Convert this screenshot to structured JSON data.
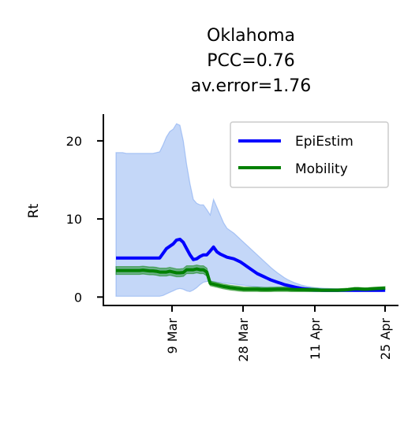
{
  "chart_data": {
    "type": "line",
    "title": [
      "Oklahoma",
      "PCC=0.76",
      "av.error=1.76"
    ],
    "xlabel": "",
    "ylabel": "Rt",
    "x_ticks": [
      "9 Mar",
      "28 Mar",
      "11 Apr",
      "25 Apr"
    ],
    "y_ticks": [
      0,
      10,
      20
    ],
    "ylim": [
      -1,
      23.5
    ],
    "legend": {
      "placement": "top-right"
    },
    "x": [
      0,
      1,
      2,
      3,
      4,
      5,
      6,
      7,
      8,
      9,
      10,
      11,
      12,
      13,
      14,
      15,
      16,
      17,
      18,
      19,
      20,
      21,
      22,
      23,
      24,
      25,
      26,
      27,
      28,
      29,
      30,
      31,
      32,
      33,
      34,
      35,
      36,
      37,
      38,
      39,
      40,
      41,
      42,
      43,
      44,
      45,
      46,
      47,
      48,
      49,
      50,
      51,
      52,
      53,
      54,
      55,
      56,
      57,
      58,
      59,
      60,
      61,
      62,
      63,
      64,
      65,
      66,
      67,
      68,
      69,
      70,
      71,
      72,
      73,
      74,
      75,
      76,
      77,
      78,
      79,
      80
    ],
    "series": [
      {
        "name": "EpiEstim",
        "color": "#0000ff",
        "band_color": "#6495ed",
        "values": [
          5.0,
          5.0,
          5.0,
          5.0,
          5.0,
          5.0,
          5.0,
          5.0,
          5.0,
          5.0,
          5.0,
          5.0,
          5.0,
          5.0,
          5.6,
          6.2,
          6.5,
          6.8,
          7.3,
          7.4,
          7.0,
          6.2,
          5.4,
          4.8,
          4.9,
          5.2,
          5.4,
          5.4,
          5.9,
          6.4,
          5.8,
          5.5,
          5.3,
          5.1,
          5.0,
          4.9,
          4.7,
          4.5,
          4.2,
          3.9,
          3.6,
          3.3,
          3.0,
          2.8,
          2.6,
          2.4,
          2.2,
          2.05,
          1.9,
          1.75,
          1.6,
          1.5,
          1.4,
          1.3,
          1.2,
          1.12,
          1.05,
          1.0,
          0.95,
          0.92,
          0.9,
          0.88,
          0.87,
          0.86,
          0.86,
          0.86,
          0.86,
          0.86,
          0.86,
          0.86,
          0.86,
          0.86,
          0.86,
          0.86,
          0.86,
          0.86,
          0.86,
          0.86,
          0.86,
          0.87,
          0.88
        ],
        "lower": [
          0.1,
          0.1,
          0.1,
          0.1,
          0.1,
          0.1,
          0.1,
          0.1,
          0.1,
          0.1,
          0.1,
          0.1,
          0.1,
          0.1,
          0.2,
          0.4,
          0.6,
          0.8,
          1.0,
          1.1,
          1.0,
          0.8,
          0.7,
          0.9,
          1.2,
          1.6,
          1.9,
          2.0,
          2.0,
          2.0,
          1.9,
          1.85,
          1.8,
          1.75,
          1.7,
          1.65,
          1.6,
          1.55,
          1.5,
          1.45,
          1.4,
          1.35,
          1.3,
          1.25,
          1.2,
          1.15,
          1.1,
          1.05,
          1.0,
          0.95,
          0.9,
          0.87,
          0.85,
          0.82,
          0.8,
          0.78,
          0.76,
          0.74,
          0.72,
          0.71,
          0.7,
          0.7,
          0.7,
          0.7,
          0.7,
          0.7,
          0.7,
          0.7,
          0.7,
          0.7,
          0.7,
          0.7,
          0.7,
          0.7,
          0.7,
          0.7,
          0.7,
          0.7,
          0.7,
          0.7,
          0.7
        ],
        "upper": [
          18.5,
          18.5,
          18.5,
          18.4,
          18.4,
          18.4,
          18.4,
          18.4,
          18.4,
          18.4,
          18.4,
          18.4,
          18.5,
          18.6,
          19.5,
          20.5,
          21.2,
          21.5,
          22.2,
          22.0,
          20.0,
          17.0,
          14.5,
          12.5,
          12.0,
          11.8,
          11.8,
          11.2,
          10.5,
          12.5,
          11.5,
          10.5,
          9.5,
          8.8,
          8.5,
          8.2,
          7.8,
          7.4,
          7.0,
          6.6,
          6.2,
          5.8,
          5.4,
          5.0,
          4.6,
          4.2,
          3.8,
          3.45,
          3.1,
          2.8,
          2.5,
          2.25,
          2.05,
          1.85,
          1.7,
          1.55,
          1.45,
          1.35,
          1.28,
          1.22,
          1.18,
          1.15,
          1.12,
          1.1,
          1.08,
          1.06,
          1.05,
          1.04,
          1.03,
          1.02,
          1.02,
          1.02,
          1.02,
          1.02,
          1.02,
          1.02,
          1.02,
          1.02,
          1.02,
          1.02,
          1.02
        ]
      },
      {
        "name": "Mobility",
        "color": "#008000",
        "band_color": "#008000",
        "values": [
          3.4,
          3.4,
          3.4,
          3.4,
          3.4,
          3.4,
          3.4,
          3.4,
          3.45,
          3.4,
          3.35,
          3.35,
          3.3,
          3.2,
          3.2,
          3.2,
          3.3,
          3.2,
          3.1,
          3.1,
          3.15,
          3.5,
          3.5,
          3.5,
          3.6,
          3.5,
          3.5,
          3.2,
          1.75,
          1.65,
          1.55,
          1.45,
          1.35,
          1.28,
          1.2,
          1.15,
          1.1,
          1.05,
          1.0,
          1.0,
          1.0,
          1.0,
          1.0,
          0.98,
          0.97,
          0.97,
          0.98,
          0.99,
          1.0,
          1.0,
          1.0,
          1.0,
          0.98,
          0.96,
          0.95,
          0.95,
          0.95,
          0.94,
          0.93,
          0.92,
          0.9,
          0.88,
          0.88,
          0.88,
          0.88,
          0.88,
          0.88,
          0.9,
          0.92,
          0.95,
          1.0,
          1.05,
          1.05,
          1.02,
          1.0,
          1.02,
          1.05,
          1.08,
          1.1,
          1.12,
          1.15
        ],
        "lower": [
          2.9,
          2.9,
          2.9,
          2.9,
          2.9,
          2.9,
          2.9,
          2.9,
          2.95,
          2.9,
          2.85,
          2.85,
          2.8,
          2.7,
          2.7,
          2.7,
          2.8,
          2.7,
          2.6,
          2.6,
          2.65,
          3.0,
          3.0,
          3.0,
          3.1,
          3.0,
          3.0,
          2.7,
          1.45,
          1.35,
          1.25,
          1.15,
          1.05,
          0.98,
          0.9,
          0.85,
          0.8,
          0.75,
          0.72,
          0.72,
          0.72,
          0.72,
          0.72,
          0.7,
          0.7,
          0.7,
          0.7,
          0.72,
          0.72,
          0.72,
          0.72,
          0.72,
          0.7,
          0.7,
          0.7,
          0.7,
          0.7,
          0.7,
          0.7,
          0.7,
          0.7,
          0.7,
          0.7,
          0.7,
          0.7,
          0.7,
          0.7,
          0.72,
          0.74,
          0.77,
          0.82,
          0.87,
          0.87,
          0.84,
          0.82,
          0.84,
          0.87,
          0.9,
          0.92,
          0.94,
          0.97
        ],
        "upper": [
          3.9,
          3.9,
          3.9,
          3.9,
          3.9,
          3.9,
          3.9,
          3.9,
          3.95,
          3.9,
          3.85,
          3.85,
          3.8,
          3.7,
          3.7,
          3.7,
          3.8,
          3.7,
          3.6,
          3.6,
          3.65,
          4.0,
          4.0,
          4.0,
          4.1,
          4.0,
          4.0,
          3.7,
          2.05,
          1.95,
          1.85,
          1.75,
          1.65,
          1.58,
          1.5,
          1.45,
          1.4,
          1.35,
          1.28,
          1.28,
          1.28,
          1.28,
          1.28,
          1.26,
          1.24,
          1.24,
          1.26,
          1.26,
          1.28,
          1.28,
          1.28,
          1.28,
          1.26,
          1.22,
          1.2,
          1.2,
          1.2,
          1.18,
          1.16,
          1.14,
          1.1,
          1.06,
          1.06,
          1.06,
          1.06,
          1.06,
          1.06,
          1.08,
          1.1,
          1.13,
          1.18,
          1.23,
          1.23,
          1.2,
          1.18,
          1.2,
          1.23,
          1.26,
          1.28,
          1.3,
          1.33
        ]
      }
    ]
  }
}
